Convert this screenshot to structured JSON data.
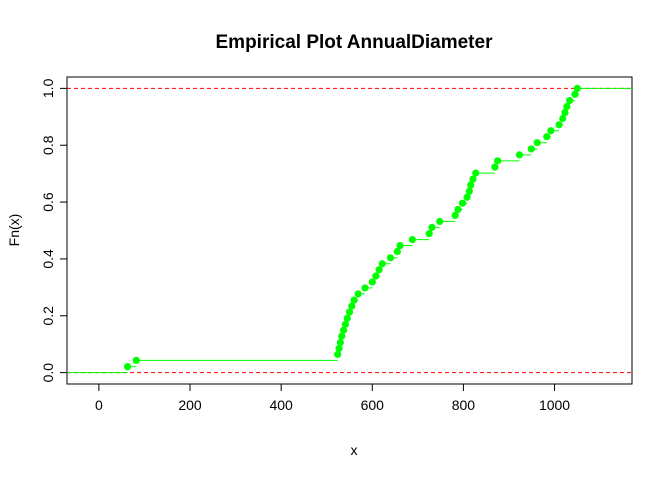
{
  "chart_data": {
    "type": "step",
    "title": "Empirical Plot AnnualDiameter",
    "xlabel": "x",
    "ylabel": "Fn(x)",
    "xlim": [
      -70,
      1170
    ],
    "ylim": [
      -0.04,
      1.04
    ],
    "x_ticks": [
      0,
      200,
      400,
      600,
      800,
      1000
    ],
    "y_ticks": [
      0.0,
      0.2,
      0.4,
      0.6,
      0.8,
      1.0
    ],
    "x_tick_labels": [
      "0",
      "200",
      "400",
      "600",
      "800",
      "1000"
    ],
    "y_tick_labels": [
      "0.0",
      "0.2",
      "0.4",
      "0.6",
      "0.8",
      "1.0"
    ],
    "reference_lines": [
      0,
      1
    ],
    "colors": {
      "points": "#00ff00",
      "steps": "#00ff00",
      "reference": "#ff0000",
      "axes": "#000000"
    },
    "points": [
      {
        "x": 63,
        "y": 0.021
      },
      {
        "x": 82,
        "y": 0.043
      },
      {
        "x": 524,
        "y": 0.064
      },
      {
        "x": 527,
        "y": 0.085
      },
      {
        "x": 530,
        "y": 0.106
      },
      {
        "x": 533,
        "y": 0.128
      },
      {
        "x": 537,
        "y": 0.149
      },
      {
        "x": 541,
        "y": 0.17
      },
      {
        "x": 545,
        "y": 0.191
      },
      {
        "x": 550,
        "y": 0.213
      },
      {
        "x": 555,
        "y": 0.234
      },
      {
        "x": 560,
        "y": 0.255
      },
      {
        "x": 569,
        "y": 0.277
      },
      {
        "x": 584,
        "y": 0.298
      },
      {
        "x": 600,
        "y": 0.319
      },
      {
        "x": 608,
        "y": 0.34
      },
      {
        "x": 615,
        "y": 0.362
      },
      {
        "x": 622,
        "y": 0.383
      },
      {
        "x": 640,
        "y": 0.404
      },
      {
        "x": 655,
        "y": 0.426
      },
      {
        "x": 661,
        "y": 0.447
      },
      {
        "x": 688,
        "y": 0.468
      },
      {
        "x": 725,
        "y": 0.489
      },
      {
        "x": 731,
        "y": 0.511
      },
      {
        "x": 748,
        "y": 0.532
      },
      {
        "x": 782,
        "y": 0.553
      },
      {
        "x": 788,
        "y": 0.574
      },
      {
        "x": 798,
        "y": 0.596
      },
      {
        "x": 808,
        "y": 0.617
      },
      {
        "x": 813,
        "y": 0.638
      },
      {
        "x": 816,
        "y": 0.66
      },
      {
        "x": 821,
        "y": 0.681
      },
      {
        "x": 827,
        "y": 0.702
      },
      {
        "x": 869,
        "y": 0.723
      },
      {
        "x": 875,
        "y": 0.745
      },
      {
        "x": 923,
        "y": 0.766
      },
      {
        "x": 949,
        "y": 0.787
      },
      {
        "x": 962,
        "y": 0.809
      },
      {
        "x": 983,
        "y": 0.83
      },
      {
        "x": 992,
        "y": 0.851
      },
      {
        "x": 1010,
        "y": 0.872
      },
      {
        "x": 1018,
        "y": 0.894
      },
      {
        "x": 1023,
        "y": 0.915
      },
      {
        "x": 1027,
        "y": 0.936
      },
      {
        "x": 1033,
        "y": 0.957
      },
      {
        "x": 1045,
        "y": 0.979
      },
      {
        "x": 1050,
        "y": 1.0
      }
    ]
  }
}
